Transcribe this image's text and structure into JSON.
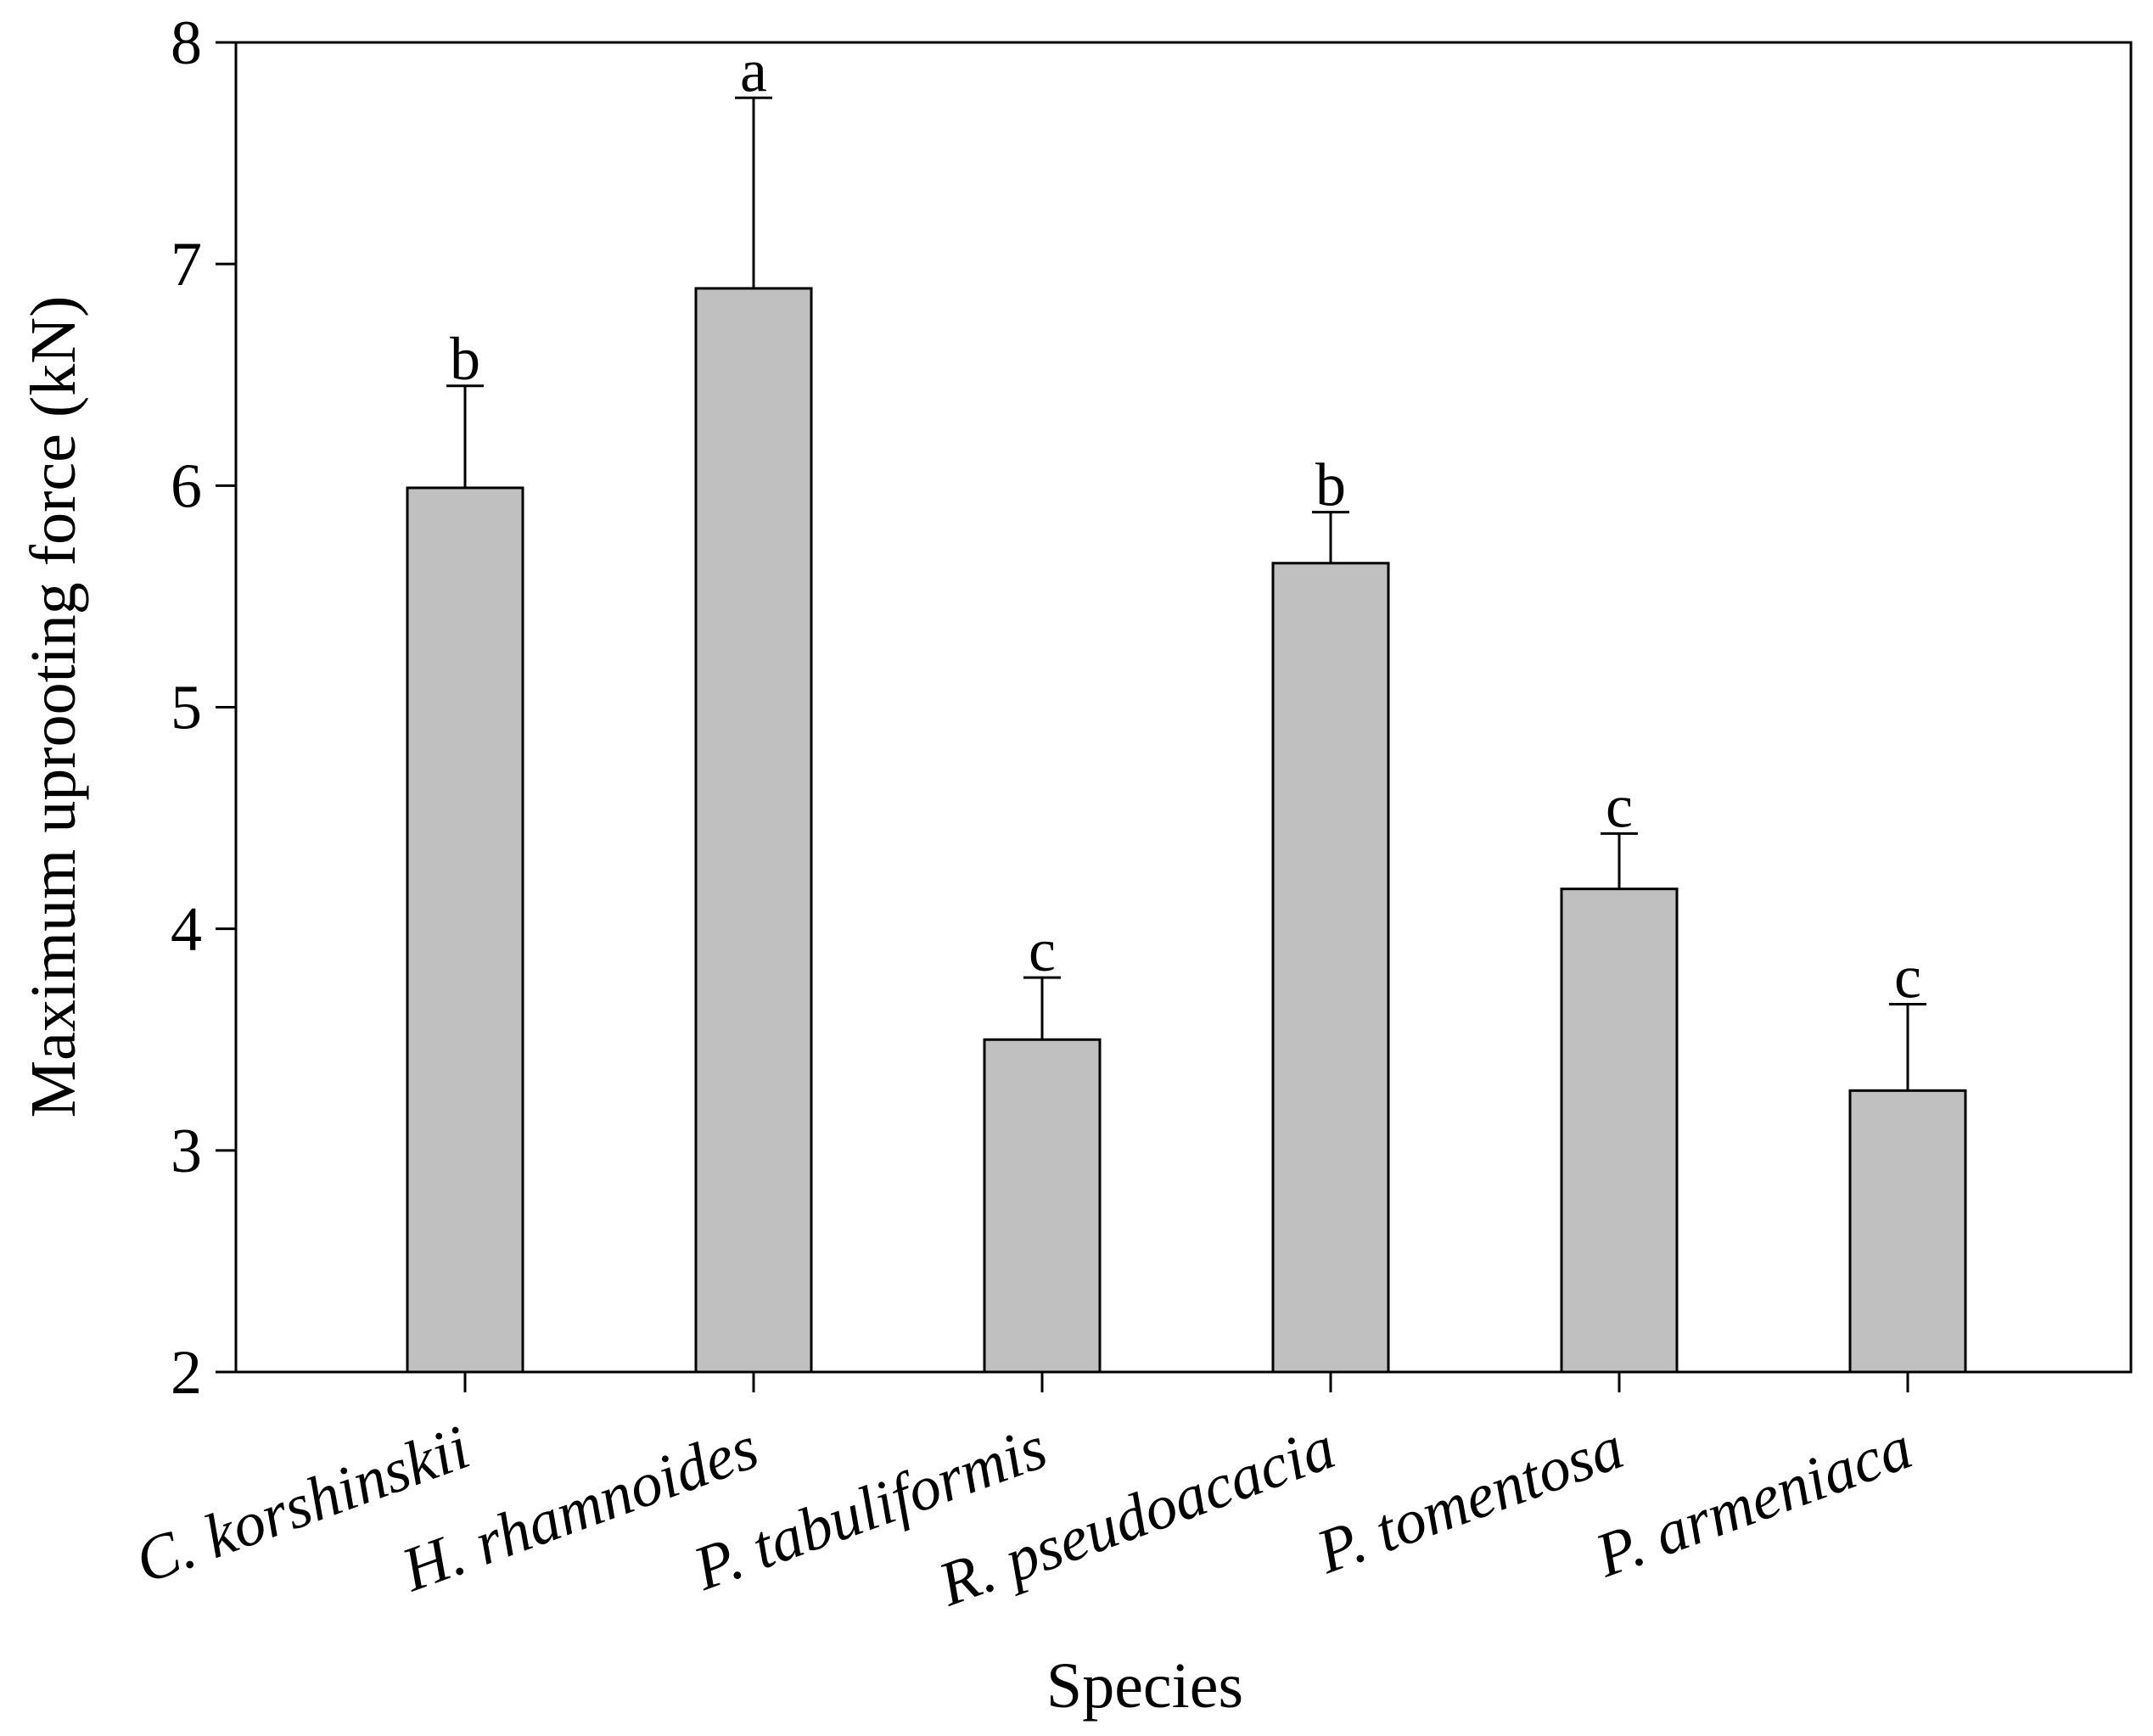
{
  "chart_data": {
    "type": "bar",
    "xlabel": "Species",
    "ylabel": "Maximum uprooting force (kN)",
    "ylim": [
      2,
      8
    ],
    "yticks": [
      "2",
      "3",
      "4",
      "5",
      "6",
      "7",
      "8"
    ],
    "categories": [
      "C. korshinskii",
      "H. rhamnoides",
      "P. tabuliformis",
      "R. pseudoacacia",
      "P. tomentosa",
      "P. armeniaca"
    ],
    "values": [
      5.99,
      6.89,
      3.5,
      5.65,
      4.18,
      3.27
    ],
    "errors": [
      0.46,
      0.86,
      0.28,
      0.23,
      0.25,
      0.39
    ],
    "letters": [
      "b",
      "a",
      "c",
      "b",
      "c",
      "c"
    ],
    "bar_color": "#c0c0c0",
    "grid": false,
    "legend": "none"
  }
}
